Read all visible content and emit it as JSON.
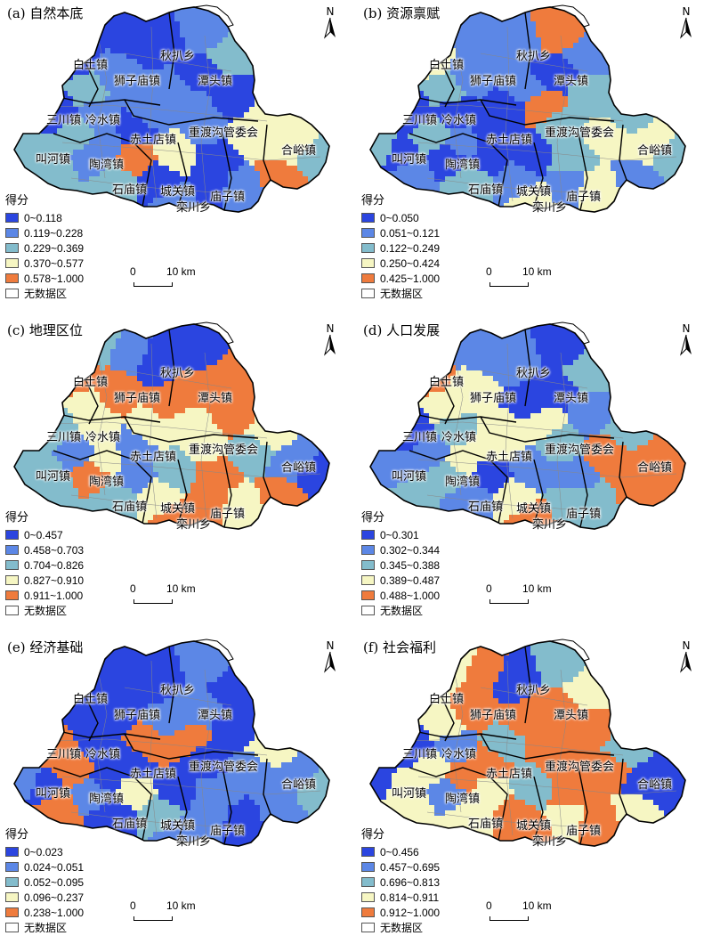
{
  "colors": {
    "class1": "#2b45e0",
    "class2": "#5c87e6",
    "class3": "#83bccc",
    "class4": "#f6f6c3",
    "class5": "#ef7b3d",
    "nodata": "#ffffff"
  },
  "legend": {
    "title": "得分",
    "nodata_label": "无数据区"
  },
  "north_label": "N",
  "scale": {
    "zero": "0",
    "distance": "10 km"
  },
  "towns": [
    "白土镇",
    "秋扒乡",
    "狮子庙镇",
    "潭头镇",
    "三川镇",
    "冷水镇",
    "赤土店镇",
    "重渡沟管委会",
    "合峪镇",
    "叫河镇",
    "陶湾镇",
    "石庙镇",
    "城关镇",
    "庙子镇",
    "栾川乡"
  ],
  "panels": [
    {
      "title": "(a) 自然本底",
      "classes": [
        "0~0.118",
        "0.119~0.228",
        "0.229~0.369",
        "0.370~0.577",
        "0.578~1.000"
      ]
    },
    {
      "title": "(b) 资源禀赋",
      "classes": [
        "0~0.050",
        "0.051~0.121",
        "0.122~0.249",
        "0.250~0.424",
        "0.425~1.000"
      ]
    },
    {
      "title": "(c) 地理区位",
      "classes": [
        "0~0.457",
        "0.458~0.703",
        "0.704~0.826",
        "0.827~0.910",
        "0.911~1.000"
      ]
    },
    {
      "title": "(d) 人口发展",
      "classes": [
        "0~0.301",
        "0.302~0.344",
        "0.345~0.388",
        "0.389~0.487",
        "0.488~1.000"
      ]
    },
    {
      "title": "(e) 经济基础",
      "classes": [
        "0~0.023",
        "0.024~0.051",
        "0.052~0.095",
        "0.096~0.237",
        "0.238~1.000"
      ]
    },
    {
      "title": "(f) 社会福利",
      "classes": [
        "0~0.456",
        "0.457~0.695",
        "0.696~0.813",
        "0.814~0.911",
        "0.912~1.000"
      ]
    }
  ]
}
